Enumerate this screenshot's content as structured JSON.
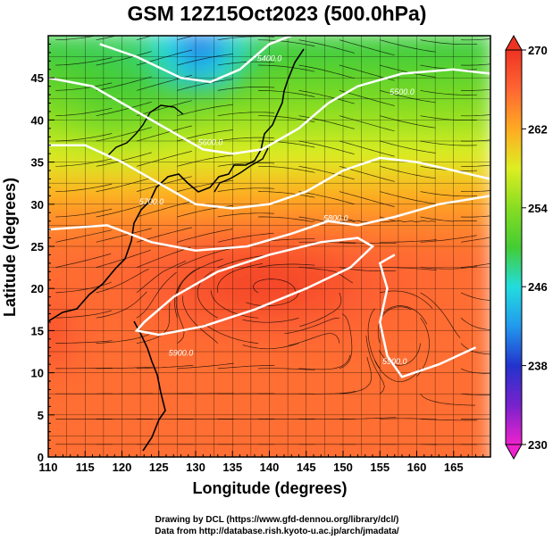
{
  "title": "GSM 12Z15Oct2023 (500.0hPa)",
  "xlabel": "Longitude (degrees)",
  "ylabel": "Latitude  (degrees)",
  "credits": {
    "line1": "Drawing by DCL (https://www.gfd-dennou.org/library/dcl/)",
    "line2": "Data from http://database.rish.kyoto-u.ac.jp/arch/jmadata/"
  },
  "chart_data": {
    "type": "heatmap",
    "title": "GSM 12Z15Oct2023 (500.0hPa)",
    "xlabel": "Longitude (degrees)",
    "ylabel": "Latitude  (degrees)",
    "xlim": [
      110,
      170
    ],
    "ylim": [
      0,
      50
    ],
    "x_ticks": [
      110,
      115,
      120,
      125,
      130,
      135,
      140,
      145,
      150,
      155,
      160,
      165
    ],
    "y_ticks": [
      0,
      5,
      10,
      15,
      20,
      25,
      30,
      35,
      40,
      45
    ],
    "grid": true,
    "colorbar": {
      "min": 230,
      "max": 270,
      "ticks": [
        230,
        238,
        246,
        254,
        262,
        270
      ],
      "colors": [
        "#ee22cc",
        "#7722cc",
        "#2233cc",
        "#2299ee",
        "#22dddd",
        "#44cc33",
        "#88dd22",
        "#ddee22",
        "#ffaa22",
        "#ff6633",
        "#ee3322"
      ]
    },
    "overlays": [
      "temperature shading",
      "streamlines",
      "geopotential height contours",
      "coastlines"
    ],
    "contour_labels": [
      "5400.0",
      "5500.0",
      "5600.0",
      "5700.0",
      "5800.0",
      "5900.0",
      "5900.0"
    ]
  }
}
